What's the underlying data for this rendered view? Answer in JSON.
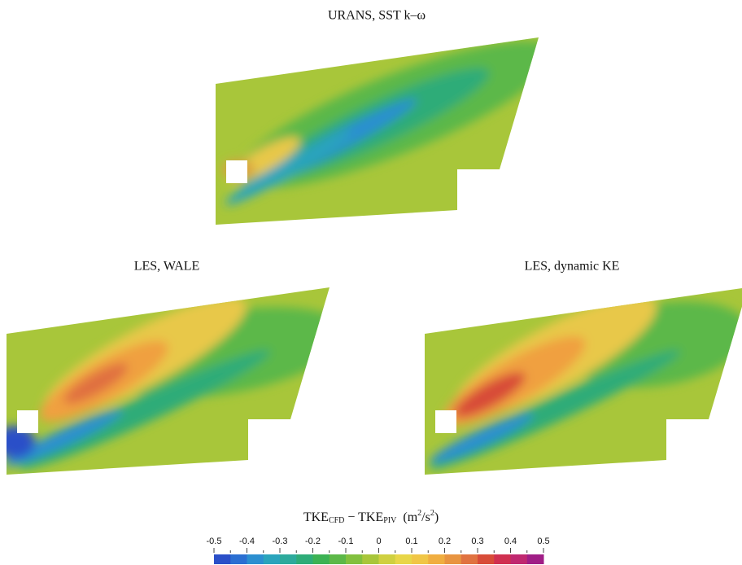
{
  "panels": [
    {
      "title": "URANS, SST k–ω"
    },
    {
      "title": "LES, WALE"
    },
    {
      "title": "LES, dynamic KE"
    }
  ],
  "colorbar": {
    "label_parts": [
      "TKE",
      "CFD",
      " − TKE",
      "PIV",
      "  (m",
      "2",
      "/s",
      "2",
      ")"
    ],
    "ticks": [
      -0.5,
      -0.4,
      -0.3,
      -0.2,
      -0.1,
      0,
      0.1,
      0.2,
      0.3,
      0.4,
      0.5
    ],
    "colors": [
      "#2a4fc8",
      "#2b6fd2",
      "#2c8fd0",
      "#2aa4bc",
      "#2daa9c",
      "#2eac78",
      "#3cb254",
      "#5cb848",
      "#82c03e",
      "#a8c63a",
      "#cfd040",
      "#e8d648",
      "#f0c646",
      "#f0ae40",
      "#e89440",
      "#e07240",
      "#d84c38",
      "#d03050",
      "#c02870",
      "#a01e86"
    ]
  }
}
